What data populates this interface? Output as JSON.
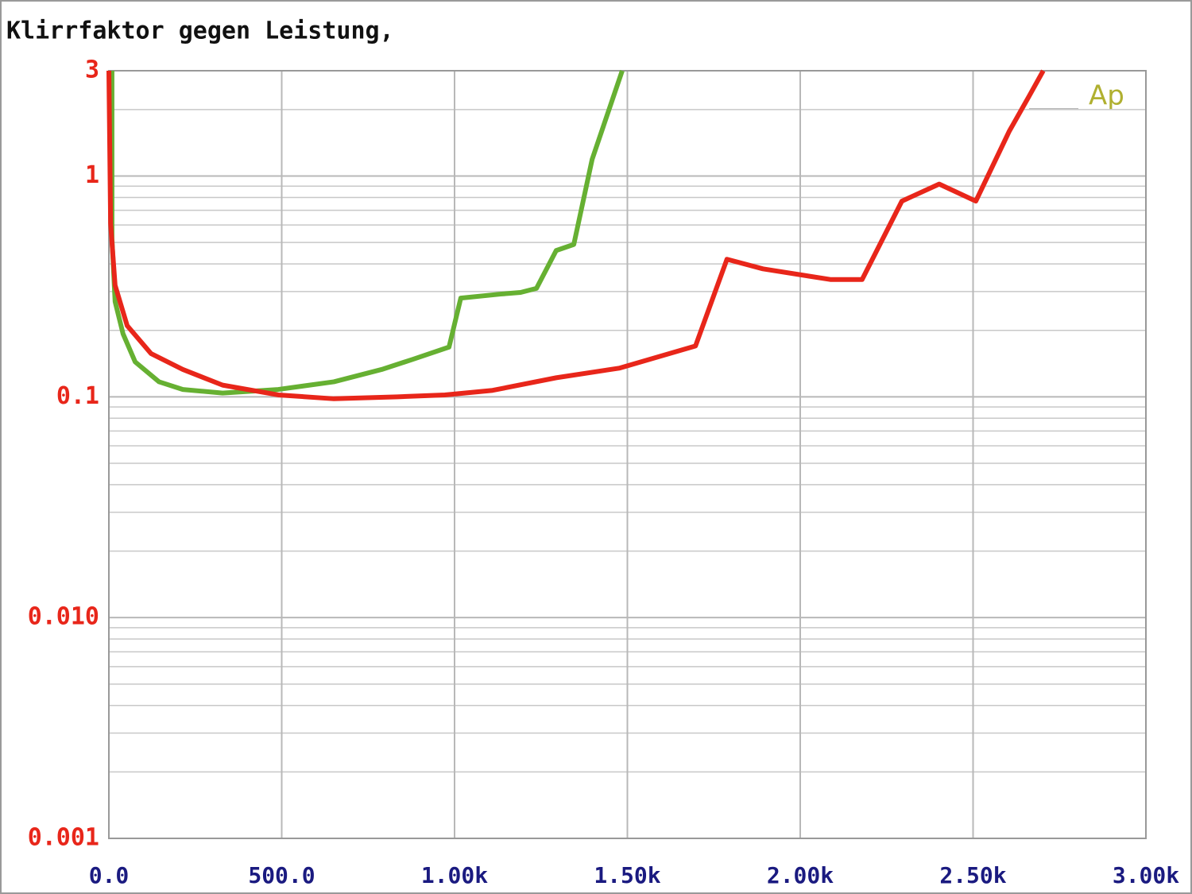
{
  "chart_data": {
    "type": "line",
    "title": "Klirrfaktor gegen Leistung,",
    "annotation": "Ap",
    "log_y": true,
    "grid": true,
    "xlim": [
      0,
      3000
    ],
    "ylim": [
      0.001,
      3
    ],
    "xticks": [
      {
        "value": 0,
        "label": "0.0"
      },
      {
        "value": 500,
        "label": "500.0"
      },
      {
        "value": 1000,
        "label": "1.00k"
      },
      {
        "value": 1500,
        "label": "1.50k"
      },
      {
        "value": 2000,
        "label": "2.00k"
      },
      {
        "value": 2500,
        "label": "2.50k"
      },
      {
        "value": 3000,
        "label": "3.00k"
      }
    ],
    "yticks": [
      3,
      1,
      0.1,
      {
        "value": 0.01,
        "label": "0.010"
      },
      {
        "value": 0.001,
        "label": "0.001"
      }
    ],
    "series": [
      {
        "color": "#66b032",
        "x": [
          9,
          9,
          18,
          41,
          76,
          145,
          214,
          329,
          490,
          651,
          789,
          880,
          984,
          1018,
          1133,
          1191,
          1237,
          1294,
          1345,
          1398,
          1485
        ],
        "values": [
          3,
          0.52,
          0.27,
          0.193,
          0.144,
          0.117,
          0.108,
          0.104,
          0.108,
          0.117,
          0.133,
          0.148,
          0.168,
          0.28,
          0.292,
          0.297,
          0.31,
          0.46,
          0.49,
          1.19,
          3
        ]
      },
      {
        "color": "#e8261a",
        "x": [
          0,
          5,
          18,
          53,
          122,
          214,
          329,
          490,
          651,
          835,
          972,
          1110,
          1294,
          1478,
          1697,
          1788,
          1892,
          2087,
          2179,
          2294,
          2402,
          2508,
          2605,
          2662,
          2703
        ],
        "values": [
          3,
          0.61,
          0.32,
          0.21,
          0.157,
          0.133,
          0.113,
          0.102,
          0.098,
          0.1,
          0.102,
          0.107,
          0.122,
          0.135,
          0.17,
          0.42,
          0.38,
          0.34,
          0.34,
          0.77,
          0.92,
          0.77,
          1.6,
          2.3,
          3
        ]
      }
    ]
  }
}
